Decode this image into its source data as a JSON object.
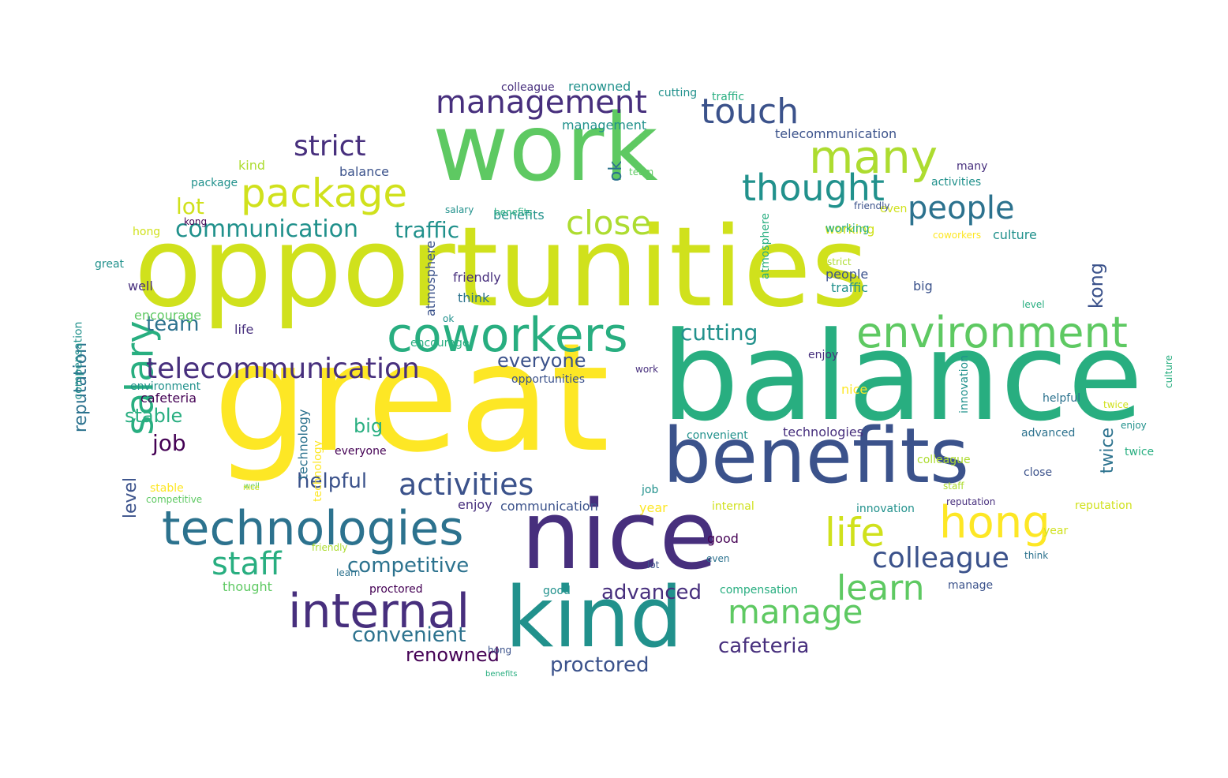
{
  "palette": {
    "c0": "#440154",
    "c1": "#472f7d",
    "c2": "#3b528b",
    "c3": "#2c728e",
    "c4": "#21918c",
    "c5": "#28ae80",
    "c6": "#5ec962",
    "c7": "#addc30",
    "c8": "#fde725",
    "c9": "#d0e11c"
  },
  "words": [
    {
      "text": "opportunities",
      "weight": 100,
      "color": "c9"
    },
    {
      "text": "great",
      "weight": 95,
      "color": "c8"
    },
    {
      "text": "balance",
      "weight": 90,
      "color": "c5"
    },
    {
      "text": "work",
      "weight": 85,
      "color": "c6"
    },
    {
      "text": "benefits",
      "weight": 80,
      "color": "c2"
    },
    {
      "text": "nice",
      "weight": 78,
      "color": "c1"
    },
    {
      "text": "kind",
      "weight": 72,
      "color": "c4"
    },
    {
      "text": "technologies",
      "weight": 60,
      "color": "c3"
    },
    {
      "text": "coworkers",
      "weight": 55,
      "color": "c5"
    },
    {
      "text": "environment",
      "weight": 52,
      "color": "c6"
    },
    {
      "text": "internal",
      "weight": 52,
      "color": "c1"
    },
    {
      "text": "management",
      "weight": 45,
      "color": "c1"
    },
    {
      "text": "package",
      "weight": 45,
      "color": "c9"
    },
    {
      "text": "many",
      "weight": 45,
      "color": "c7"
    },
    {
      "text": "thought",
      "weight": 40,
      "color": "c4"
    },
    {
      "text": "hong",
      "weight": 45,
      "color": "c8"
    },
    {
      "text": "salary",
      "weight": 48,
      "color": "c5"
    },
    {
      "text": "touch",
      "weight": 38,
      "color": "c2"
    },
    {
      "text": "telecommunication",
      "weight": 36,
      "color": "c1"
    },
    {
      "text": "activities",
      "weight": 36,
      "color": "c2"
    },
    {
      "text": "people",
      "weight": 36,
      "color": "c3"
    },
    {
      "text": "strict",
      "weight": 34,
      "color": "c1"
    },
    {
      "text": "life",
      "weight": 40,
      "color": "c9"
    },
    {
      "text": "learn",
      "weight": 38,
      "color": "c6"
    },
    {
      "text": "manage",
      "weight": 38,
      "color": "c6"
    },
    {
      "text": "colleague",
      "weight": 32,
      "color": "c2"
    },
    {
      "text": "close",
      "weight": 36,
      "color": "c7"
    },
    {
      "text": "staff",
      "weight": 36,
      "color": "c5"
    },
    {
      "text": "communication",
      "weight": 30,
      "color": "c4"
    },
    {
      "text": "traffic",
      "weight": 26,
      "color": "c4"
    },
    {
      "text": "cutting",
      "weight": 26,
      "color": "c4"
    },
    {
      "text": "everyone",
      "weight": 24,
      "color": "c2"
    },
    {
      "text": "convenient",
      "weight": 26,
      "color": "c3"
    },
    {
      "text": "competitive",
      "weight": 26,
      "color": "c3"
    },
    {
      "text": "helpful",
      "weight": 26,
      "color": "c2"
    },
    {
      "text": "advanced",
      "weight": 24,
      "color": "c1"
    },
    {
      "text": "cafeteria",
      "weight": 24,
      "color": "c1"
    },
    {
      "text": "proctored",
      "weight": 24,
      "color": "c2"
    },
    {
      "text": "renowned",
      "weight": 24,
      "color": "c0"
    },
    {
      "text": "reputation",
      "weight": 22,
      "color": "c3"
    },
    {
      "text": "team",
      "weight": 24,
      "color": "c3"
    },
    {
      "text": "lot",
      "weight": 26,
      "color": "c9"
    },
    {
      "text": "stable",
      "weight": 24,
      "color": "c5"
    },
    {
      "text": "big",
      "weight": 24,
      "color": "c5"
    },
    {
      "text": "job",
      "weight": 26,
      "color": "c0"
    },
    {
      "text": "kong",
      "weight": 22,
      "color": "c2"
    },
    {
      "text": "twice",
      "weight": 22,
      "color": "c3"
    },
    {
      "text": "level",
      "weight": 22,
      "color": "c2"
    },
    {
      "text": "ok",
      "weight": 22,
      "color": "c3"
    },
    {
      "text": "encourage",
      "weight": 16,
      "color": "c6"
    },
    {
      "text": "friendly",
      "weight": 16,
      "color": "c1"
    },
    {
      "text": "think",
      "weight": 16,
      "color": "c3"
    },
    {
      "text": "compensation",
      "weight": 16,
      "color": "c4"
    },
    {
      "text": "atmosphere",
      "weight": 16,
      "color": "c2"
    },
    {
      "text": "innovation",
      "weight": 16,
      "color": "c4"
    },
    {
      "text": "technology",
      "weight": 16,
      "color": "c3"
    },
    {
      "text": "culture",
      "weight": 16,
      "color": "c4"
    },
    {
      "text": "year",
      "weight": 16,
      "color": "c8"
    },
    {
      "text": "good",
      "weight": 16,
      "color": "c0"
    },
    {
      "text": "enjoy",
      "weight": 16,
      "color": "c1"
    },
    {
      "text": "working",
      "weight": 16,
      "color": "c9"
    },
    {
      "text": "even",
      "weight": 14,
      "color": "c9"
    },
    {
      "text": "well",
      "weight": 16,
      "color": "c1"
    },
    {
      "text": "kind",
      "weight": 16,
      "color": "c7"
    },
    {
      "text": "opportunities",
      "weight": 14,
      "color": "c2"
    },
    {
      "text": "benefits",
      "weight": 14,
      "color": "c4"
    },
    {
      "text": "management",
      "weight": 14,
      "color": "c4"
    },
    {
      "text": "telecommunication",
      "weight": 16,
      "color": "c2"
    },
    {
      "text": "renowned",
      "weight": 16,
      "color": "c4"
    },
    {
      "text": "colleague",
      "weight": 14,
      "color": "c1"
    },
    {
      "text": "cutting",
      "weight": 14,
      "color": "c4"
    },
    {
      "text": "traffic",
      "weight": 14,
      "color": "c5"
    },
    {
      "text": "package",
      "weight": 14,
      "color": "c4"
    },
    {
      "text": "hong",
      "weight": 14,
      "color": "c9"
    },
    {
      "text": "great",
      "weight": 14,
      "color": "c4"
    },
    {
      "text": "cafeteria",
      "weight": 14,
      "color": "c0"
    },
    {
      "text": "environment",
      "weight": 14,
      "color": "c4"
    },
    {
      "text": "stable",
      "weight": 14,
      "color": "c8"
    },
    {
      "text": "competitive",
      "weight": 12,
      "color": "c6"
    },
    {
      "text": "thought",
      "weight": 16,
      "color": "c6"
    },
    {
      "text": "balance",
      "weight": 14,
      "color": "c2"
    },
    {
      "text": "activities",
      "weight": 14,
      "color": "c4"
    },
    {
      "text": "many",
      "weight": 14,
      "color": "c1"
    },
    {
      "text": "people",
      "weight": 16,
      "color": "c2"
    },
    {
      "text": "traffic",
      "weight": 16,
      "color": "c4"
    },
    {
      "text": "benefits",
      "weight": 14,
      "color": "c5"
    },
    {
      "text": "coworkers",
      "weight": 14,
      "color": "c8"
    },
    {
      "text": "working",
      "weight": 12,
      "color": "c5"
    },
    {
      "text": "friendly",
      "weight": 12,
      "color": "c2"
    },
    {
      "text": "team",
      "weight": 12,
      "color": "c6"
    },
    {
      "text": "salary",
      "weight": 12,
      "color": "c4"
    },
    {
      "text": "strict",
      "weight": 12,
      "color": "c7"
    },
    {
      "text": "proctored",
      "weight": 12,
      "color": "c0"
    },
    {
      "text": "work",
      "weight": 12,
      "color": "c1"
    },
    {
      "text": "innovation",
      "weight": 12,
      "color": "c4"
    },
    {
      "text": "manage",
      "weight": 12,
      "color": "c2"
    },
    {
      "text": "helpful",
      "weight": 12,
      "color": "c3"
    },
    {
      "text": "close",
      "weight": 12,
      "color": "c2"
    },
    {
      "text": "reputation",
      "weight": 12,
      "color": "c1"
    },
    {
      "text": "year",
      "weight": 12,
      "color": "c9"
    },
    {
      "text": "level",
      "weight": 12,
      "color": "c5"
    },
    {
      "text": "big",
      "weight": 12,
      "color": "c2"
    },
    {
      "text": "nice",
      "weight": 14,
      "color": "c8"
    },
    {
      "text": "job",
      "weight": 14,
      "color": "c4"
    },
    {
      "text": "lot",
      "weight": 12,
      "color": "c2"
    },
    {
      "text": "ok",
      "weight": 12,
      "color": "c4"
    },
    {
      "text": "twice",
      "weight": 12,
      "color": "c5"
    },
    {
      "text": "good",
      "weight": 14,
      "color": "c4"
    },
    {
      "text": "life",
      "weight": 16,
      "color": "c1"
    },
    {
      "text": "enjoy",
      "weight": 14,
      "color": "c1"
    },
    {
      "text": "everyone",
      "weight": 14,
      "color": "c0"
    },
    {
      "text": "convenient",
      "weight": 12,
      "color": "c4"
    },
    {
      "text": "advanced",
      "weight": 12,
      "color": "c3"
    },
    {
      "text": "atmosphere",
      "weight": 12,
      "color": "c5"
    },
    {
      "text": "technology",
      "weight": 12,
      "color": "c8"
    },
    {
      "text": "internal",
      "weight": 12,
      "color": "c9"
    },
    {
      "text": "compensation",
      "weight": 12,
      "color": "c5"
    },
    {
      "text": "think",
      "weight": 12,
      "color": "c3"
    },
    {
      "text": "even",
      "weight": 12,
      "color": "c3"
    },
    {
      "text": "culture",
      "weight": 12,
      "color": "c5"
    },
    {
      "text": "technologies",
      "weight": 12,
      "color": "c1"
    },
    {
      "text": "communication",
      "weight": 12,
      "color": "c2"
    },
    {
      "text": "encourage",
      "weight": 12,
      "color": "c5"
    },
    {
      "text": "kong",
      "weight": 12,
      "color": "c0"
    },
    {
      "text": "well",
      "weight": 12,
      "color": "c6"
    },
    {
      "text": "learn",
      "weight": 12,
      "color": "c3"
    },
    {
      "text": "staff",
      "weight": 12,
      "color": "c7"
    },
    {
      "text": "reputation",
      "weight": 12,
      "color": "c9"
    },
    {
      "text": "twice",
      "weight": 12,
      "color": "c9"
    },
    {
      "text": "colleague",
      "weight": 12,
      "color": "c7"
    },
    {
      "text": "hong",
      "weight": 12,
      "color": "c2"
    },
    {
      "text": "enjoy",
      "weight": 12,
      "color": "c4"
    },
    {
      "text": "friendly",
      "weight": 12,
      "color": "c7"
    },
    {
      "text": "nice",
      "weight": 12,
      "color": "c9"
    },
    {
      "text": "benefits",
      "weight": 12,
      "color": "c5"
    }
  ]
}
